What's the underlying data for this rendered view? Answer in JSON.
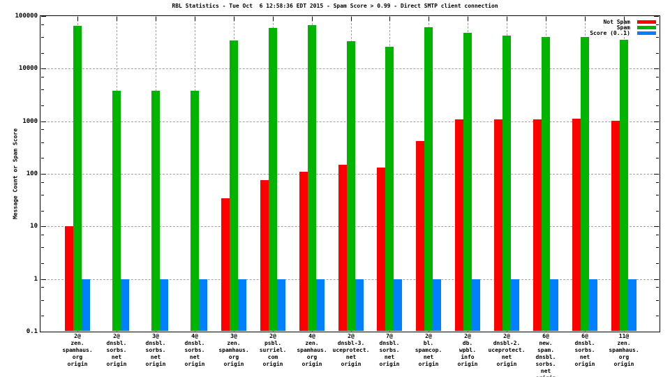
{
  "chart_data": {
    "type": "bar",
    "title": "RBL Statistics - Tue Oct  6 12:58:36 EDT 2015 - Spam Score > 0.99 - Direct SMTP client connection",
    "ylabel": "Message Count or Spam Score",
    "xlabel": "",
    "yscale": "log",
    "ylim": [
      0.1,
      100000
    ],
    "grid": true,
    "legend_position": "top-right",
    "background_color": "#ffffff",
    "grid_color": "#a0a0a0",
    "ytick_values": [
      100000,
      10000,
      1000,
      100,
      10,
      1,
      0.1
    ],
    "ytick_labels": [
      "100000",
      "10000",
      "1000",
      "100",
      "10",
      "1",
      "0.1"
    ],
    "y_minor_tick_multipliers": [
      2,
      4,
      7
    ],
    "categories": [
      [
        "2@",
        "zen.",
        "spamhaus.",
        "org",
        "origin"
      ],
      [
        "2@",
        "dnsbl.",
        "sorbs.",
        "net",
        "origin"
      ],
      [
        "3@",
        "dnsbl.",
        "sorbs.",
        "net",
        "origin"
      ],
      [
        "4@",
        "dnsbl.",
        "sorbs.",
        "net",
        "origin"
      ],
      [
        "3@",
        "zen.",
        "spamhaus.",
        "org",
        "origin"
      ],
      [
        "2@",
        "psbl.",
        "surriel.",
        "com",
        "origin"
      ],
      [
        "4@",
        "zen.",
        "spamhaus.",
        "org",
        "origin"
      ],
      [
        "2@",
        "dnsbl-3.",
        "uceprotect.",
        "net",
        "origin"
      ],
      [
        "7@",
        "dnsbl.",
        "sorbs.",
        "net",
        "origin"
      ],
      [
        "2@",
        "bl.",
        "spamcop.",
        "net",
        "origin"
      ],
      [
        "2@",
        "db.",
        "wpbl.",
        "info",
        "origin"
      ],
      [
        "2@",
        "dnsbl-2.",
        "uceprotect.",
        "net",
        "origin"
      ],
      [
        "6@",
        "new.",
        "spam.",
        "dnsbl.",
        "sorbs.",
        "net",
        "origin"
      ],
      [
        "6@",
        "dnsbl.",
        "sorbs.",
        "net",
        "origin"
      ],
      [
        "11@",
        "zen.",
        "spamhaus.",
        "org",
        "origin"
      ]
    ],
    "series": [
      {
        "name": "Not Spam",
        "color": "#ff0000",
        "values": [
          10,
          0,
          0,
          0,
          34,
          75,
          110,
          150,
          130,
          420,
          1080,
          1070,
          1100,
          1120,
          1010
        ]
      },
      {
        "name": "Spam",
        "color": "#00b400",
        "values": [
          65000,
          3800,
          3800,
          3800,
          34000,
          59000,
          68000,
          33000,
          26000,
          62000,
          47500,
          42500,
          39500,
          39500,
          35000
        ]
      },
      {
        "name": "Score (0..1)",
        "color": "#0080ff",
        "values": [
          1,
          1,
          1,
          1,
          1,
          1,
          1,
          1,
          1,
          1,
          1,
          1,
          1,
          1,
          1
        ]
      }
    ]
  }
}
